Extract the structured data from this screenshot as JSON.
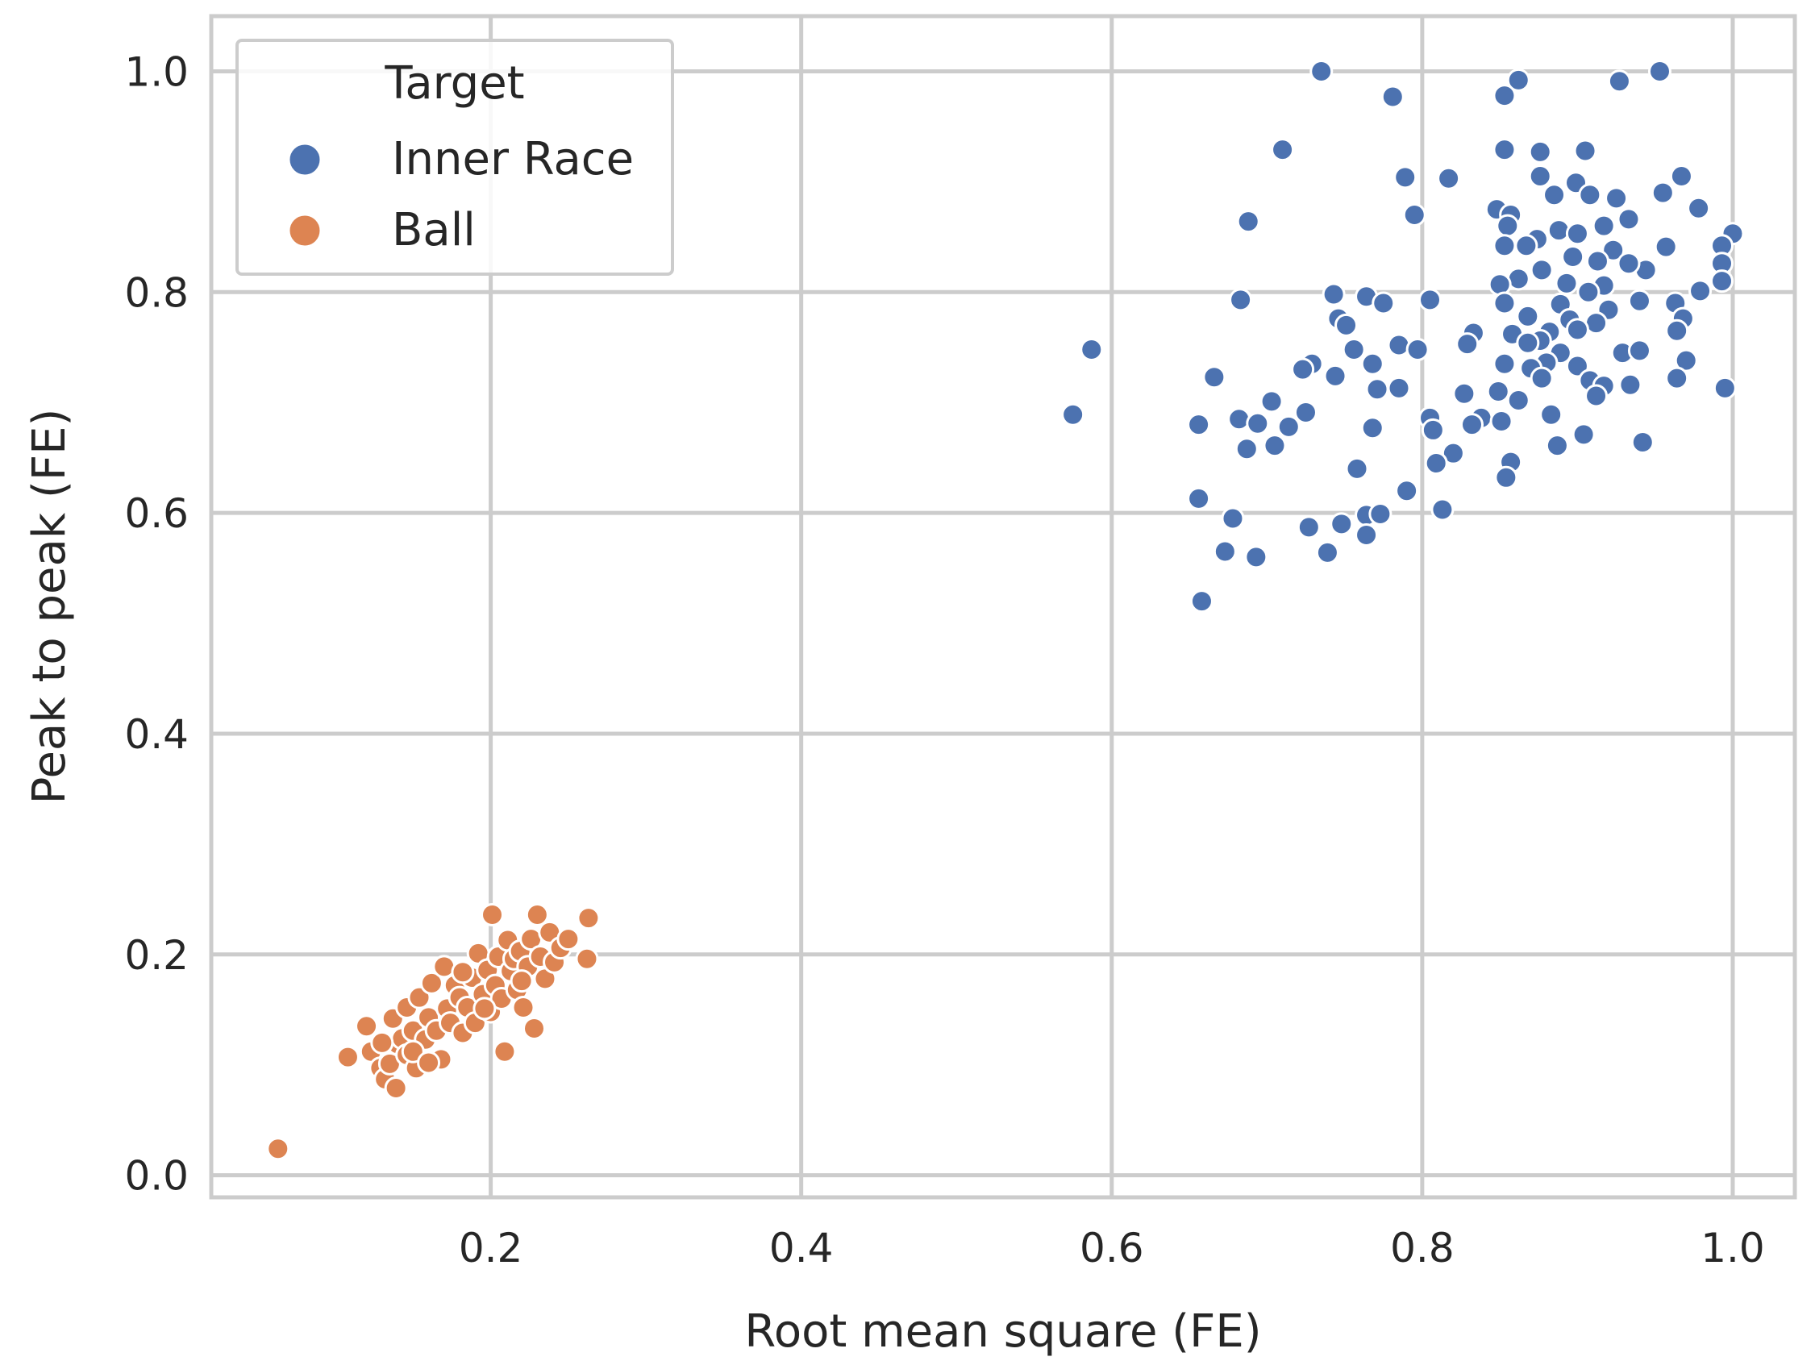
{
  "chart_data": {
    "type": "scatter",
    "title": "",
    "xlabel": "Root mean square (FE)",
    "ylabel": "Peak to peak (FE)",
    "xlim": [
      0.02,
      1.04
    ],
    "ylim": [
      -0.02,
      1.05
    ],
    "xticks": [
      0.2,
      0.4,
      0.6,
      0.8,
      1.0
    ],
    "yticks": [
      0.0,
      0.2,
      0.4,
      0.6,
      0.8,
      1.0
    ],
    "xtick_labels": [
      "0.2",
      "0.4",
      "0.6",
      "0.8",
      "1.0"
    ],
    "ytick_labels": [
      "0.0",
      "0.2",
      "0.4",
      "0.6",
      "0.8",
      "1.0"
    ],
    "grid": true,
    "legend": {
      "title": "Target",
      "placement": "top-left",
      "entries": [
        "Inner Race",
        "Ball"
      ]
    },
    "series": [
      {
        "name": "Inner Race",
        "color": "#4c72b0",
        "points": [
          [
            0.735,
            1.0
          ],
          [
            0.953,
            1.0
          ],
          [
            0.862,
            0.992
          ],
          [
            0.927,
            0.991
          ],
          [
            0.853,
            0.978
          ],
          [
            0.781,
            0.977
          ],
          [
            0.71,
            0.929
          ],
          [
            0.853,
            0.929
          ],
          [
            0.905,
            0.928
          ],
          [
            0.876,
            0.927
          ],
          [
            0.817,
            0.903
          ],
          [
            0.789,
            0.904
          ],
          [
            0.967,
            0.905
          ],
          [
            0.876,
            0.905
          ],
          [
            0.899,
            0.899
          ],
          [
            0.955,
            0.89
          ],
          [
            0.885,
            0.888
          ],
          [
            0.925,
            0.885
          ],
          [
            0.908,
            0.888
          ],
          [
            0.978,
            0.876
          ],
          [
            0.848,
            0.875
          ],
          [
            0.795,
            0.87
          ],
          [
            0.857,
            0.87
          ],
          [
            0.688,
            0.864
          ],
          [
            0.933,
            0.866
          ],
          [
            0.855,
            0.86
          ],
          [
            0.917,
            0.86
          ],
          [
            0.888,
            0.856
          ],
          [
            0.9,
            0.853
          ],
          [
            1.0,
            0.853
          ],
          [
            0.874,
            0.848
          ],
          [
            0.853,
            0.842
          ],
          [
            0.867,
            0.842
          ],
          [
            0.957,
            0.841
          ],
          [
            0.993,
            0.842
          ],
          [
            0.923,
            0.838
          ],
          [
            0.944,
            0.82
          ],
          [
            0.897,
            0.832
          ],
          [
            0.913,
            0.828
          ],
          [
            0.933,
            0.826
          ],
          [
            0.993,
            0.826
          ],
          [
            0.877,
            0.82
          ],
          [
            0.862,
            0.812
          ],
          [
            0.893,
            0.808
          ],
          [
            0.917,
            0.806
          ],
          [
            0.85,
            0.807
          ],
          [
            0.993,
            0.81
          ],
          [
            0.907,
            0.8
          ],
          [
            0.979,
            0.801
          ],
          [
            0.743,
            0.798
          ],
          [
            0.764,
            0.796
          ],
          [
            0.805,
            0.793
          ],
          [
            0.94,
            0.792
          ],
          [
            0.963,
            0.79
          ],
          [
            0.683,
            0.793
          ],
          [
            0.853,
            0.79
          ],
          [
            0.889,
            0.789
          ],
          [
            0.92,
            0.784
          ],
          [
            0.775,
            0.79
          ],
          [
            0.868,
            0.778
          ],
          [
            0.895,
            0.775
          ],
          [
            0.912,
            0.772
          ],
          [
            0.968,
            0.776
          ],
          [
            0.746,
            0.776
          ],
          [
            0.751,
            0.77
          ],
          [
            0.9,
            0.766
          ],
          [
            0.882,
            0.764
          ],
          [
            0.964,
            0.765
          ],
          [
            0.858,
            0.762
          ],
          [
            0.876,
            0.756
          ],
          [
            0.833,
            0.763
          ],
          [
            0.868,
            0.754
          ],
          [
            0.785,
            0.752
          ],
          [
            0.829,
            0.753
          ],
          [
            0.756,
            0.748
          ],
          [
            0.929,
            0.745
          ],
          [
            0.94,
            0.747
          ],
          [
            0.587,
            0.748
          ],
          [
            0.797,
            0.748
          ],
          [
            0.889,
            0.745
          ],
          [
            0.88,
            0.736
          ],
          [
            0.97,
            0.738
          ],
          [
            0.853,
            0.735
          ],
          [
            0.768,
            0.735
          ],
          [
            0.729,
            0.735
          ],
          [
            0.9,
            0.733
          ],
          [
            0.87,
            0.731
          ],
          [
            0.723,
            0.73
          ],
          [
            0.744,
            0.724
          ],
          [
            0.877,
            0.722
          ],
          [
            0.908,
            0.72
          ],
          [
            0.666,
            0.723
          ],
          [
            0.964,
            0.722
          ],
          [
            0.917,
            0.715
          ],
          [
            0.934,
            0.716
          ],
          [
            0.995,
            0.713
          ],
          [
            0.785,
            0.713
          ],
          [
            0.771,
            0.712
          ],
          [
            0.849,
            0.71
          ],
          [
            0.827,
            0.708
          ],
          [
            0.912,
            0.706
          ],
          [
            0.703,
            0.701
          ],
          [
            0.862,
            0.702
          ],
          [
            0.575,
            0.689
          ],
          [
            0.682,
            0.685
          ],
          [
            0.725,
            0.691
          ],
          [
            0.805,
            0.686
          ],
          [
            0.838,
            0.686
          ],
          [
            0.883,
            0.689
          ],
          [
            0.851,
            0.683
          ],
          [
            0.656,
            0.68
          ],
          [
            0.694,
            0.681
          ],
          [
            0.714,
            0.678
          ],
          [
            0.768,
            0.677
          ],
          [
            0.807,
            0.675
          ],
          [
            0.832,
            0.68
          ],
          [
            0.904,
            0.671
          ],
          [
            0.942,
            0.664
          ],
          [
            0.705,
            0.661
          ],
          [
            0.687,
            0.658
          ],
          [
            0.887,
            0.661
          ],
          [
            0.82,
            0.654
          ],
          [
            0.857,
            0.646
          ],
          [
            0.809,
            0.645
          ],
          [
            0.758,
            0.64
          ],
          [
            0.854,
            0.632
          ],
          [
            0.79,
            0.62
          ],
          [
            0.656,
            0.613
          ],
          [
            0.813,
            0.603
          ],
          [
            0.678,
            0.595
          ],
          [
            0.764,
            0.598
          ],
          [
            0.773,
            0.599
          ],
          [
            0.748,
            0.59
          ],
          [
            0.727,
            0.587
          ],
          [
            0.764,
            0.58
          ],
          [
            0.673,
            0.565
          ],
          [
            0.739,
            0.564
          ],
          [
            0.693,
            0.56
          ],
          [
            0.658,
            0.52
          ]
        ]
      },
      {
        "name": "Ball",
        "color": "#dd8452",
        "points": [
          [
            0.063,
            0.024
          ],
          [
            0.108,
            0.107
          ],
          [
            0.12,
            0.135
          ],
          [
            0.123,
            0.112
          ],
          [
            0.129,
            0.097
          ],
          [
            0.132,
            0.087
          ],
          [
            0.139,
            0.079
          ],
          [
            0.135,
            0.101
          ],
          [
            0.14,
            0.119
          ],
          [
            0.137,
            0.142
          ],
          [
            0.143,
            0.124
          ],
          [
            0.146,
            0.109
          ],
          [
            0.15,
            0.131
          ],
          [
            0.146,
            0.152
          ],
          [
            0.152,
            0.097
          ],
          [
            0.154,
            0.161
          ],
          [
            0.158,
            0.123
          ],
          [
            0.16,
            0.143
          ],
          [
            0.162,
            0.174
          ],
          [
            0.165,
            0.131
          ],
          [
            0.168,
            0.105
          ],
          [
            0.17,
            0.189
          ],
          [
            0.172,
            0.151
          ],
          [
            0.174,
            0.138
          ],
          [
            0.177,
            0.172
          ],
          [
            0.18,
            0.161
          ],
          [
            0.182,
            0.129
          ],
          [
            0.185,
            0.152
          ],
          [
            0.188,
            0.179
          ],
          [
            0.19,
            0.138
          ],
          [
            0.192,
            0.201
          ],
          [
            0.195,
            0.164
          ],
          [
            0.198,
            0.186
          ],
          [
            0.2,
            0.148
          ],
          [
            0.201,
            0.236
          ],
          [
            0.203,
            0.172
          ],
          [
            0.205,
            0.198
          ],
          [
            0.207,
            0.16
          ],
          [
            0.209,
            0.112
          ],
          [
            0.211,
            0.213
          ],
          [
            0.213,
            0.185
          ],
          [
            0.215,
            0.196
          ],
          [
            0.217,
            0.168
          ],
          [
            0.219,
            0.203
          ],
          [
            0.221,
            0.152
          ],
          [
            0.224,
            0.189
          ],
          [
            0.226,
            0.214
          ],
          [
            0.228,
            0.133
          ],
          [
            0.23,
            0.236
          ],
          [
            0.232,
            0.198
          ],
          [
            0.235,
            0.178
          ],
          [
            0.238,
            0.22
          ],
          [
            0.241,
            0.193
          ],
          [
            0.245,
            0.206
          ],
          [
            0.25,
            0.214
          ],
          [
            0.263,
            0.233
          ],
          [
            0.262,
            0.196
          ],
          [
            0.13,
            0.12
          ],
          [
            0.15,
            0.112
          ],
          [
            0.16,
            0.102
          ],
          [
            0.182,
            0.184
          ],
          [
            0.196,
            0.151
          ],
          [
            0.22,
            0.176
          ]
        ]
      }
    ]
  }
}
